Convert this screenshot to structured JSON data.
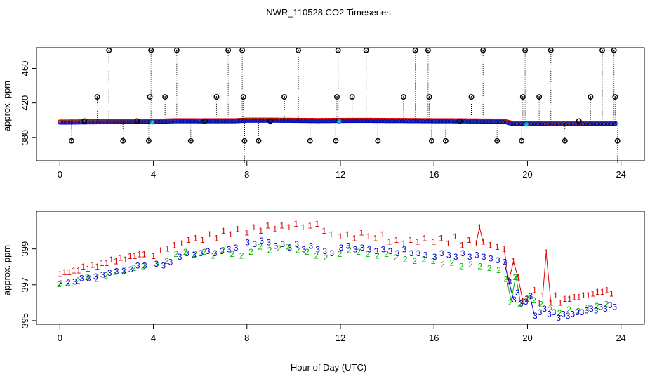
{
  "chart_data": [
    {
      "type": "scatter",
      "title": "NWR_110528  CO2 Timeseries",
      "xlabel": "",
      "ylabel": "approx. ppm",
      "xlim": [
        -1,
        25
      ],
      "ylim": [
        353,
        484
      ],
      "xticks": [
        0,
        4,
        8,
        12,
        16,
        20,
        24
      ],
      "yticks": [
        380,
        420,
        460
      ],
      "spike_high": 481,
      "spike_low": 376,
      "spikes": [
        {
          "x": 0.5,
          "y": 376
        },
        {
          "x": 1.6,
          "y": 427
        },
        {
          "x": 2.1,
          "y": 481
        },
        {
          "x": 2.7,
          "y": 376
        },
        {
          "x": 3.8,
          "y": 376
        },
        {
          "x": 3.85,
          "y": 427
        },
        {
          "x": 3.9,
          "y": 481
        },
        {
          "x": 4.5,
          "y": 427
        },
        {
          "x": 5.0,
          "y": 481
        },
        {
          "x": 5.6,
          "y": 376
        },
        {
          "x": 6.7,
          "y": 427
        },
        {
          "x": 7.2,
          "y": 481
        },
        {
          "x": 7.8,
          "y": 481
        },
        {
          "x": 7.85,
          "y": 427
        },
        {
          "x": 7.9,
          "y": 376
        },
        {
          "x": 8.5,
          "y": 376
        },
        {
          "x": 9.6,
          "y": 427
        },
        {
          "x": 10.2,
          "y": 481
        },
        {
          "x": 10.7,
          "y": 376
        },
        {
          "x": 11.8,
          "y": 376
        },
        {
          "x": 11.85,
          "y": 427
        },
        {
          "x": 11.9,
          "y": 481
        },
        {
          "x": 12.5,
          "y": 427
        },
        {
          "x": 13.1,
          "y": 481
        },
        {
          "x": 13.6,
          "y": 376
        },
        {
          "x": 14.7,
          "y": 427
        },
        {
          "x": 15.2,
          "y": 481
        },
        {
          "x": 15.75,
          "y": 481
        },
        {
          "x": 15.8,
          "y": 427
        },
        {
          "x": 15.9,
          "y": 376
        },
        {
          "x": 16.5,
          "y": 376
        },
        {
          "x": 17.6,
          "y": 427
        },
        {
          "x": 18.1,
          "y": 481
        },
        {
          "x": 18.7,
          "y": 376
        },
        {
          "x": 19.75,
          "y": 376
        },
        {
          "x": 19.8,
          "y": 427
        },
        {
          "x": 19.9,
          "y": 481
        },
        {
          "x": 20.5,
          "y": 427
        },
        {
          "x": 21.0,
          "y": 481
        },
        {
          "x": 21.6,
          "y": 376
        },
        {
          "x": 22.7,
          "y": 427
        },
        {
          "x": 23.2,
          "y": 481
        },
        {
          "x": 23.7,
          "y": 481
        },
        {
          "x": 23.75,
          "y": 427
        },
        {
          "x": 23.85,
          "y": 376
        }
      ],
      "mid_markers": [
        {
          "x": 1.05,
          "y": 399
        },
        {
          "x": 3.3,
          "y": 399
        },
        {
          "x": 6.2,
          "y": 399
        },
        {
          "x": 9.0,
          "y": 399
        },
        {
          "x": 17.1,
          "y": 399
        },
        {
          "x": 22.2,
          "y": 399
        }
      ],
      "baseline": {
        "x": [
          0.0,
          2.0,
          4.0,
          5.0,
          6.0,
          7.5,
          8.0,
          9.0,
          10.0,
          11.0,
          12.0,
          13.0,
          14.0,
          15.0,
          16.0,
          17.0,
          18.0,
          19.0,
          19.3,
          19.6,
          20.0,
          20.7,
          21.0,
          22.0,
          23.0,
          23.8
        ],
        "y": [
          397.2,
          397.7,
          398.1,
          398.8,
          398.7,
          398.8,
          399.5,
          399.5,
          399.3,
          399.0,
          399.2,
          399.3,
          399.1,
          399.0,
          398.8,
          398.7,
          398.5,
          398.3,
          396.0,
          395.6,
          395.8,
          395.6,
          395.4,
          395.5,
          395.7,
          395.8
        ]
      }
    },
    {
      "type": "scatter",
      "title": "",
      "xlabel": "Hour of Day (UTC)",
      "ylabel": "approx. ppm",
      "xlim": [
        -1,
        25
      ],
      "ylim": [
        394.8,
        401.1
      ],
      "xticks": [
        0,
        4,
        8,
        12,
        16,
        20,
        24
      ],
      "yticks": [
        395,
        397,
        399
      ],
      "markers": {
        "series1": "1",
        "series2": "2",
        "series3": "3"
      },
      "series": [
        {
          "name": "1",
          "color": "#dd0000",
          "x": [
            0.0,
            0.2,
            0.4,
            0.6,
            0.8,
            1.0,
            1.2,
            1.4,
            1.6,
            1.8,
            2.0,
            2.2,
            2.4,
            2.6,
            2.8,
            3.0,
            3.2,
            3.4,
            3.6,
            4.0,
            4.3,
            4.6,
            4.9,
            5.2,
            5.5,
            5.8,
            6.1,
            6.4,
            6.7,
            7.0,
            7.3,
            7.6,
            8.0,
            8.3,
            8.6,
            8.9,
            9.2,
            9.5,
            9.8,
            10.1,
            10.4,
            10.7,
            11.0,
            11.3,
            11.6,
            12.0,
            12.3,
            12.6,
            12.9,
            13.2,
            13.5,
            13.8,
            14.1,
            14.4,
            14.7,
            15.0,
            15.3,
            15.6,
            16.0,
            16.3,
            16.6,
            16.9,
            17.2,
            17.5,
            17.8,
            17.95,
            18.1,
            18.4,
            18.7,
            19.0,
            19.2,
            19.4,
            19.6,
            19.8,
            20.0,
            20.3,
            20.5,
            20.65,
            20.8,
            21.0,
            21.2,
            21.4,
            21.6,
            21.8,
            22.0,
            22.2,
            22.4,
            22.6,
            22.8,
            23.0,
            23.2,
            23.4,
            23.6
          ],
          "y": [
            397.6,
            397.7,
            397.7,
            397.8,
            397.8,
            398.0,
            397.9,
            398.1,
            398.0,
            398.2,
            398.2,
            398.4,
            398.3,
            398.5,
            398.4,
            398.6,
            398.6,
            398.7,
            398.7,
            398.6,
            398.9,
            399.0,
            399.2,
            399.3,
            399.5,
            399.6,
            399.5,
            399.8,
            399.6,
            400.0,
            399.8,
            400.1,
            399.9,
            400.2,
            400.0,
            400.3,
            400.1,
            400.3,
            400.2,
            400.4,
            400.2,
            400.3,
            400.4,
            400.0,
            399.8,
            399.7,
            399.8,
            399.6,
            399.9,
            399.7,
            399.6,
            399.8,
            399.4,
            399.5,
            399.3,
            399.5,
            399.4,
            399.6,
            399.4,
            399.6,
            399.3,
            399.7,
            399.2,
            399.5,
            399.3,
            400.2,
            399.4,
            399.2,
            399.1,
            399.0,
            397.2,
            398.3,
            397.4,
            396.1,
            396.2,
            396.7,
            396.0,
            396.4,
            398.8,
            396.0,
            396.4,
            396.0,
            396.2,
            396.2,
            396.3,
            396.3,
            396.4,
            396.4,
            396.5,
            396.6,
            396.6,
            396.7,
            396.5
          ]
        },
        {
          "name": "2",
          "color": "#00b000",
          "x": [
            0.0,
            0.4,
            0.8,
            1.2,
            1.6,
            2.0,
            2.4,
            2.8,
            3.2,
            3.6,
            4.2,
            4.6,
            5.0,
            5.4,
            5.8,
            6.2,
            6.6,
            7.0,
            7.4,
            7.8,
            8.2,
            8.6,
            9.0,
            9.4,
            9.8,
            10.2,
            10.6,
            11.0,
            11.4,
            12.0,
            12.4,
            12.8,
            13.2,
            13.6,
            14.0,
            14.4,
            14.8,
            15.2,
            15.6,
            16.0,
            16.4,
            16.8,
            17.2,
            17.6,
            18.0,
            18.4,
            18.8,
            19.1,
            19.3,
            19.5,
            19.7,
            20.0,
            20.3,
            20.6,
            21.0,
            21.4,
            21.8,
            22.2,
            22.6,
            23.0,
            23.4
          ],
          "y": [
            397.1,
            397.2,
            397.3,
            397.5,
            397.4,
            397.6,
            397.8,
            397.9,
            398.0,
            398.1,
            398.2,
            398.4,
            398.8,
            398.9,
            398.8,
            398.9,
            398.7,
            399.0,
            398.8,
            398.7,
            398.9,
            399.2,
            399.0,
            399.1,
            399.2,
            399.0,
            398.9,
            398.7,
            398.6,
            398.8,
            399.0,
            398.9,
            398.8,
            398.7,
            398.8,
            398.6,
            398.5,
            398.4,
            398.5,
            398.4,
            398.2,
            398.3,
            398.1,
            398.2,
            398.1,
            398.0,
            397.9,
            397.4,
            396.1,
            397.5,
            396.0,
            396.3,
            396.2,
            396.0,
            395.7,
            395.5,
            395.7,
            395.6,
            395.8,
            395.9,
            396.0
          ]
        },
        {
          "name": "3",
          "color": "#0000cc",
          "x": [
            0.0,
            0.3,
            0.6,
            0.9,
            1.2,
            1.5,
            1.8,
            2.1,
            2.4,
            2.7,
            3.0,
            3.3,
            3.6,
            4.1,
            4.4,
            4.7,
            5.1,
            5.4,
            5.7,
            6.0,
            6.3,
            6.6,
            6.9,
            7.2,
            7.5,
            8.0,
            8.3,
            8.6,
            8.9,
            9.2,
            9.5,
            9.8,
            10.1,
            10.4,
            10.7,
            11.0,
            11.3,
            11.6,
            12.0,
            12.3,
            12.6,
            12.9,
            13.2,
            13.5,
            13.8,
            14.1,
            14.4,
            14.7,
            15.0,
            15.3,
            15.6,
            16.0,
            16.3,
            16.6,
            16.9,
            17.2,
            17.5,
            17.8,
            18.1,
            18.4,
            18.7,
            19.0,
            19.2,
            19.4,
            19.55,
            19.7,
            19.9,
            20.1,
            20.3,
            20.5,
            20.7,
            20.9,
            21.1,
            21.3,
            21.5,
            21.7,
            21.9,
            22.1,
            22.3,
            22.5,
            22.7,
            22.9,
            23.1,
            23.3,
            23.5,
            23.7
          ],
          "y": [
            397.1,
            397.1,
            397.2,
            397.4,
            397.4,
            397.5,
            397.6,
            397.7,
            397.8,
            397.8,
            397.9,
            398.1,
            398.1,
            398.2,
            398.1,
            398.3,
            398.6,
            398.8,
            398.7,
            398.8,
            398.9,
            398.8,
            398.9,
            399.0,
            399.1,
            399.4,
            399.3,
            399.5,
            399.4,
            399.2,
            399.3,
            399.1,
            399.3,
            399.0,
            399.2,
            399.0,
            398.9,
            398.8,
            399.1,
            399.2,
            399.0,
            399.1,
            399.0,
            398.9,
            399.0,
            398.9,
            398.8,
            399.0,
            398.8,
            398.8,
            398.7,
            398.6,
            398.8,
            398.7,
            398.6,
            398.8,
            398.6,
            398.7,
            398.6,
            398.5,
            398.4,
            398.3,
            397.2,
            396.2,
            396.6,
            396.0,
            396.1,
            396.4,
            395.3,
            395.5,
            395.7,
            395.4,
            395.5,
            395.2,
            395.4,
            395.3,
            395.4,
            395.5,
            395.5,
            395.6,
            395.7,
            395.6,
            395.8,
            395.7,
            395.9,
            395.8
          ]
        }
      ]
    }
  ]
}
